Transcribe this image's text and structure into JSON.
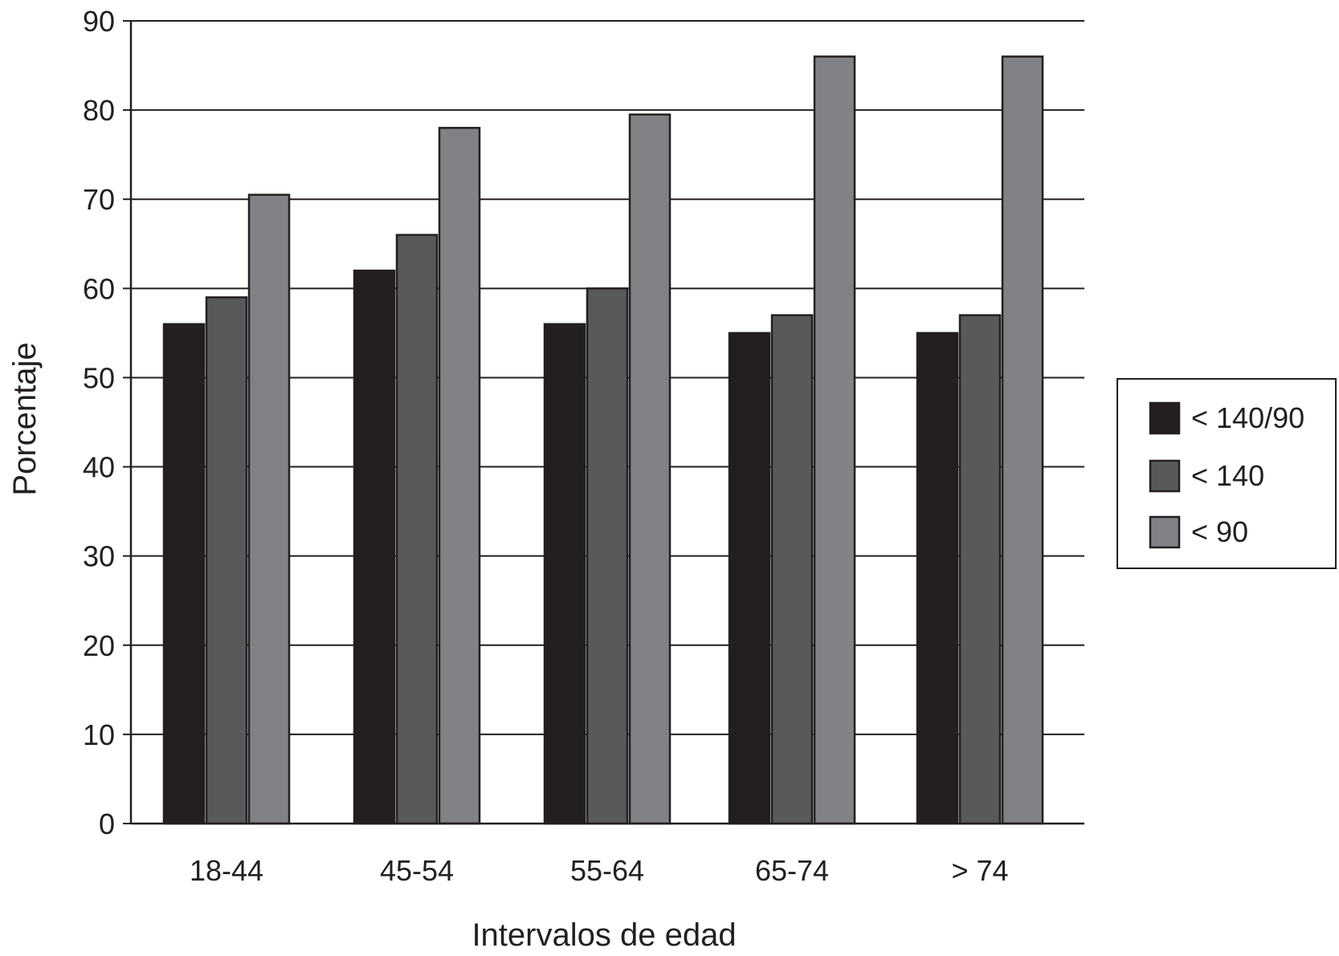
{
  "chart_data": {
    "type": "bar",
    "title": "",
    "xlabel": "Intervalos de edad",
    "ylabel": "Porcentaje",
    "categories": [
      "18-44",
      "45-54",
      "55-64",
      "65-74",
      "> 74"
    ],
    "series": [
      {
        "name": "< 140/90",
        "color": "#231f20",
        "values": [
          56,
          62,
          56,
          55,
          55
        ]
      },
      {
        "name": "< 140",
        "color": "#58595b",
        "values": [
          59,
          66,
          60,
          57,
          57
        ]
      },
      {
        "name": "< 90",
        "color": "#808285",
        "values": [
          70.5,
          78,
          79.5,
          86,
          86
        ]
      }
    ],
    "ylim": [
      0,
      90
    ],
    "yticks": [
      0,
      10,
      20,
      30,
      40,
      50,
      60,
      70,
      80,
      90
    ],
    "grid": true,
    "legend_position": "right"
  }
}
